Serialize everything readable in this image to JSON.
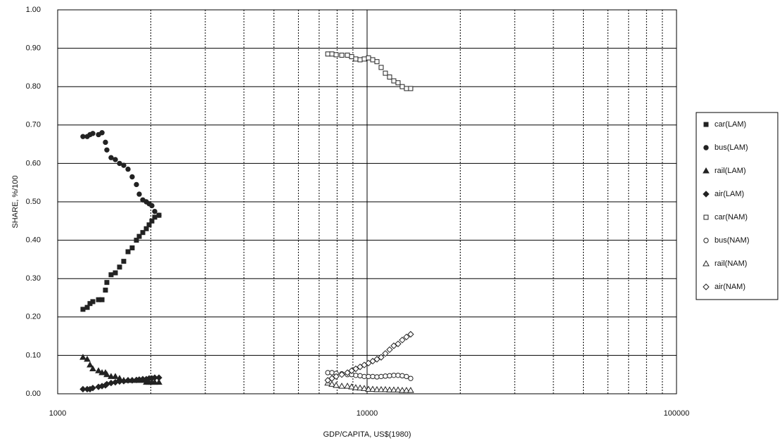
{
  "chart_data": {
    "type": "scatter",
    "x_label": "GDP/CAPITA, US$(1980)",
    "y_label": "SHARE, %/100",
    "xscale": "log",
    "xlim": [
      1000,
      100000
    ],
    "xticks": [
      1000,
      10000,
      100000
    ],
    "ylim": [
      0,
      1
    ],
    "yticks": [
      {
        "value": 0,
        "label": "0.00"
      },
      {
        "value": 0.1,
        "label": "0.10"
      },
      {
        "value": 0.2,
        "label": "0.20"
      },
      {
        "value": 0.3,
        "label": "0.30"
      },
      {
        "value": 0.4,
        "label": "0.40"
      },
      {
        "value": 0.5,
        "label": "0.50"
      },
      {
        "value": 0.6,
        "label": "0.60"
      },
      {
        "value": 0.7,
        "label": "0.70"
      },
      {
        "value": 0.8,
        "label": "0.80"
      },
      {
        "value": 0.9,
        "label": "0.90"
      },
      {
        "value": 1,
        "label": "1.00"
      }
    ],
    "grid": true,
    "legend": "right",
    "series": [
      {
        "name": "car(LAM)",
        "color": "#222",
        "marker": "square",
        "filled": true,
        "x": [
          1207,
          1246,
          1272,
          1299,
          1355,
          1391,
          1427,
          1442,
          1488,
          1536,
          1585,
          1635,
          1688,
          1741,
          1797,
          1835,
          1884,
          1934,
          1975,
          2016,
          2059,
          2125
        ],
        "values": [
          0.22,
          0.225,
          0.235,
          0.24,
          0.245,
          0.245,
          0.27,
          0.29,
          0.31,
          0.315,
          0.33,
          0.345,
          0.37,
          0.38,
          0.4,
          0.41,
          0.42,
          0.43,
          0.44,
          0.45,
          0.46,
          0.465
        ]
      },
      {
        "name": "bus(LAM)",
        "color": "#222",
        "marker": "circle",
        "filled": true,
        "x": [
          1207,
          1246,
          1272,
          1299,
          1355,
          1391,
          1427,
          1442,
          1488,
          1536,
          1585,
          1635,
          1688,
          1741,
          1797,
          1835,
          1884,
          1934,
          1975,
          2016,
          2059,
          2125
        ],
        "values": [
          0.67,
          0.67,
          0.675,
          0.678,
          0.675,
          0.68,
          0.655,
          0.635,
          0.615,
          0.61,
          0.6,
          0.595,
          0.585,
          0.565,
          0.545,
          0.52,
          0.505,
          0.5,
          0.495,
          0.49,
          0.475,
          0.465
        ]
      },
      {
        "name": "rail(LAM)",
        "color": "#222",
        "marker": "triangle",
        "filled": true,
        "x": [
          1207,
          1246,
          1272,
          1299,
          1355,
          1391,
          1427,
          1442,
          1488,
          1536,
          1585,
          1635,
          1688,
          1741,
          1797,
          1835,
          1884,
          1934,
          1975,
          2016,
          2059,
          2125
        ],
        "values": [
          0.095,
          0.09,
          0.075,
          0.065,
          0.06,
          0.055,
          0.055,
          0.05,
          0.045,
          0.045,
          0.04,
          0.035,
          0.035,
          0.035,
          0.035,
          0.035,
          0.035,
          0.03,
          0.03,
          0.03,
          0.03,
          0.03
        ]
      },
      {
        "name": "air(LAM)",
        "color": "#222",
        "marker": "diamond",
        "filled": true,
        "x": [
          1207,
          1246,
          1272,
          1299,
          1355,
          1391,
          1427,
          1442,
          1488,
          1536,
          1585,
          1635,
          1688,
          1741,
          1797,
          1835,
          1884,
          1934,
          1975,
          2016,
          2059,
          2125
        ],
        "values": [
          0.012,
          0.012,
          0.012,
          0.015,
          0.018,
          0.02,
          0.022,
          0.025,
          0.028,
          0.03,
          0.032,
          0.033,
          0.035,
          0.035,
          0.036,
          0.037,
          0.038,
          0.038,
          0.04,
          0.04,
          0.042,
          0.042
        ]
      },
      {
        "name": "car(NAM)",
        "color": "#222",
        "marker": "square",
        "filled": false,
        "x": [
          7464,
          7697,
          7943,
          8283,
          8639,
          8913,
          9193,
          9491,
          9793,
          10105,
          10428,
          10760,
          11103,
          11457,
          11822,
          12199,
          12589,
          12990,
          13404,
          13830
        ],
        "values": [
          0.885,
          0.885,
          0.883,
          0.882,
          0.882,
          0.878,
          0.872,
          0.87,
          0.872,
          0.875,
          0.87,
          0.865,
          0.85,
          0.835,
          0.825,
          0.815,
          0.81,
          0.8,
          0.795,
          0.795
        ]
      },
      {
        "name": "bus(NAM)",
        "color": "#222",
        "marker": "circle",
        "filled": false,
        "x": [
          7464,
          7697,
          7943,
          8283,
          8639,
          8913,
          9193,
          9491,
          9793,
          10105,
          10428,
          10760,
          11103,
          11457,
          11822,
          12199,
          12589,
          12990,
          13404,
          13830
        ],
        "values": [
          0.055,
          0.055,
          0.053,
          0.052,
          0.05,
          0.05,
          0.048,
          0.047,
          0.045,
          0.045,
          0.045,
          0.044,
          0.045,
          0.046,
          0.047,
          0.048,
          0.048,
          0.047,
          0.045,
          0.04
        ]
      },
      {
        "name": "rail(NAM)",
        "color": "#222",
        "marker": "triangle",
        "filled": false,
        "x": [
          7464,
          7697,
          7943,
          8283,
          8639,
          8913,
          9193,
          9491,
          9793,
          10105,
          10428,
          10760,
          11103,
          11457,
          11822,
          12199,
          12589,
          12990,
          13404,
          13830
        ],
        "values": [
          0.028,
          0.025,
          0.022,
          0.02,
          0.02,
          0.018,
          0.016,
          0.015,
          0.014,
          0.012,
          0.012,
          0.011,
          0.011,
          0.011,
          0.01,
          0.01,
          0.01,
          0.009,
          0.009,
          0.009
        ]
      },
      {
        "name": "air(NAM)",
        "color": "#222",
        "marker": "diamond",
        "filled": false,
        "x": [
          7464,
          7697,
          7943,
          8283,
          8639,
          8913,
          9193,
          9491,
          9793,
          10105,
          10428,
          10760,
          11103,
          11457,
          11822,
          12199,
          12589,
          12990,
          13404,
          13830
        ],
        "values": [
          0.035,
          0.04,
          0.045,
          0.05,
          0.055,
          0.06,
          0.065,
          0.07,
          0.075,
          0.08,
          0.085,
          0.09,
          0.095,
          0.105,
          0.115,
          0.125,
          0.13,
          0.14,
          0.148,
          0.155
        ]
      }
    ]
  }
}
